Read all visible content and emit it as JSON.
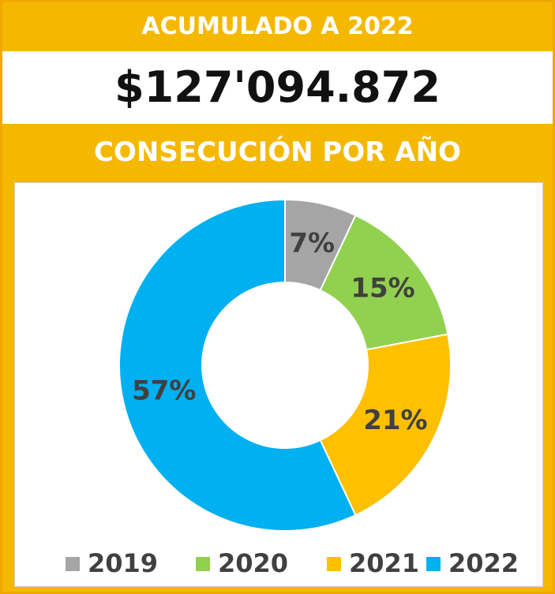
{
  "header": {
    "title": "ACUMULADO A 2022",
    "total": "$127'094.872"
  },
  "chart_data": {
    "type": "donut",
    "title": "CONSECUCIÓN POR AÑO",
    "categories": [
      "2019",
      "2020",
      "2021",
      "2022"
    ],
    "values": [
      7,
      15,
      21,
      57
    ],
    "value_labels": [
      "7%",
      "15%",
      "21%",
      "57%"
    ],
    "colors": [
      "#a5a5a5",
      "#92d050",
      "#ffc000",
      "#00b0f0"
    ],
    "legend": "bottom"
  }
}
